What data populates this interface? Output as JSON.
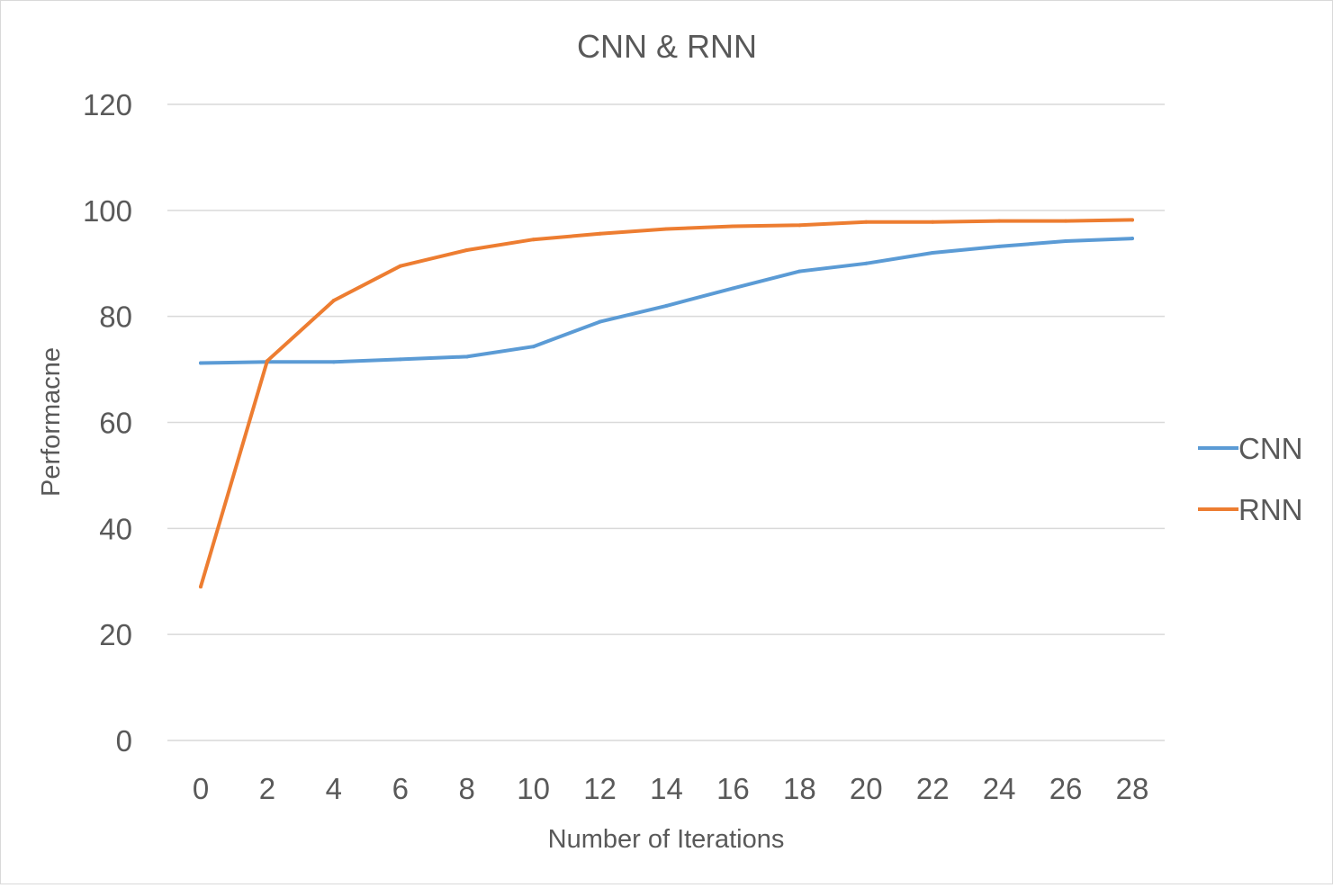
{
  "chart_data": {
    "type": "line",
    "title": "CNN & RNN",
    "xlabel": "Number of Iterations",
    "ylabel": "Performacne",
    "x": [
      0,
      2,
      4,
      6,
      8,
      10,
      12,
      14,
      16,
      18,
      20,
      22,
      24,
      26,
      28
    ],
    "x_tick_labels": [
      "0",
      "2",
      "4",
      "6",
      "8",
      "10",
      "12",
      "14",
      "16",
      "18",
      "20",
      "22",
      "24",
      "26",
      "28"
    ],
    "y_tick_labels": [
      "0",
      "20",
      "40",
      "60",
      "80",
      "100",
      "120"
    ],
    "y_ticks": [
      0,
      20,
      40,
      60,
      80,
      100,
      120
    ],
    "ylim": [
      0,
      120
    ],
    "grid": true,
    "legend_position": "right",
    "series": [
      {
        "name": "CNN",
        "color": "#5b9bd5",
        "values": [
          71.2,
          71.4,
          71.4,
          71.9,
          72.4,
          74.3,
          79,
          82,
          85.3,
          88.5,
          90,
          92,
          93.2,
          94.2,
          94.7
        ]
      },
      {
        "name": "RNN",
        "color": "#ed7d31",
        "values": [
          29,
          71.6,
          83,
          89.5,
          92.5,
          94.5,
          95.6,
          96.5,
          97,
          97.2,
          97.8,
          97.8,
          98,
          98,
          98.2
        ]
      }
    ]
  }
}
